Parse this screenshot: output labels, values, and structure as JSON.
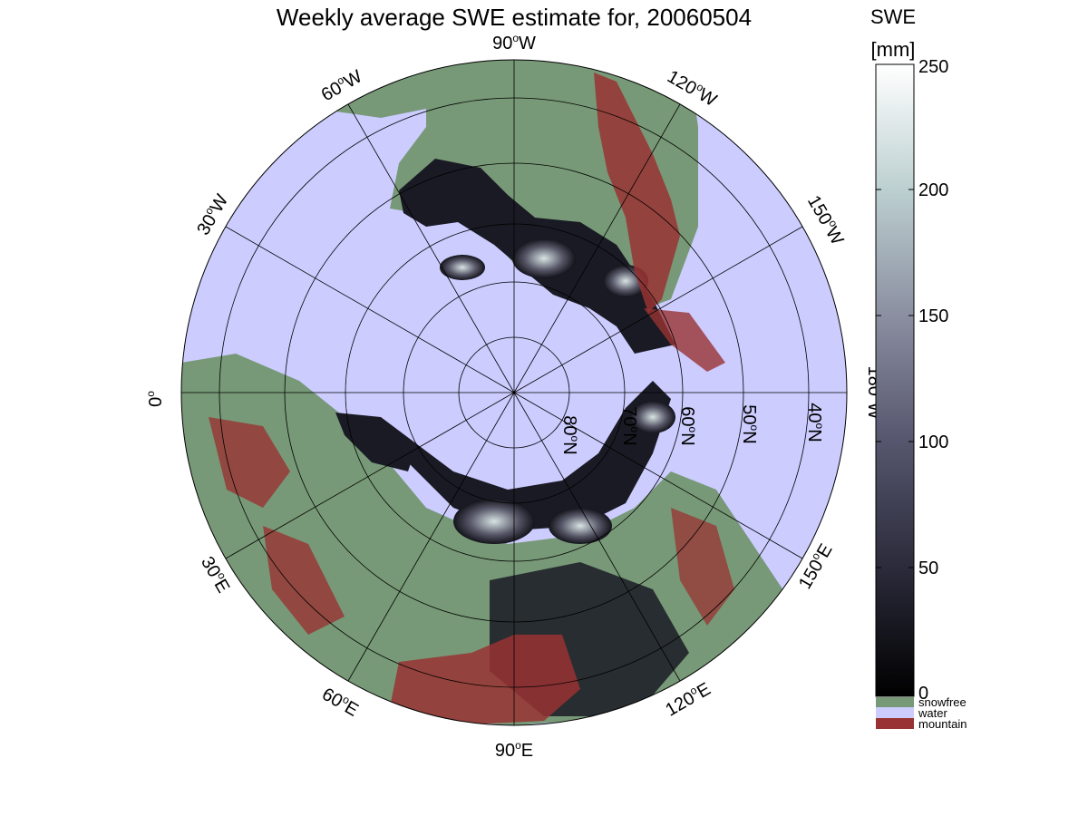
{
  "map": {
    "title": "Weekly average SWE estimate for, 20060504",
    "projection": "north-polar-stereographic",
    "meridian_labels": [
      {
        "lon_label": "90",
        "hemi": "W"
      },
      {
        "lon_label": "120",
        "hemi": "W"
      },
      {
        "lon_label": "150",
        "hemi": "W"
      },
      {
        "lon_label": "180",
        "hemi": "W"
      },
      {
        "lon_label": "150",
        "hemi": "E"
      },
      {
        "lon_label": "120",
        "hemi": "E"
      },
      {
        "lon_label": "90",
        "hemi": "E"
      },
      {
        "lon_label": "60",
        "hemi": "E"
      },
      {
        "lon_label": "30",
        "hemi": "E"
      },
      {
        "lon_label": "0",
        "hemi": ""
      },
      {
        "lon_label": "30",
        "hemi": "W"
      },
      {
        "lon_label": "60",
        "hemi": "W"
      }
    ],
    "parallel_labels": [
      {
        "lat": "80",
        "hemi": "N"
      },
      {
        "lat": "70",
        "hemi": "N"
      },
      {
        "lat": "60",
        "hemi": "N"
      },
      {
        "lat": "50",
        "hemi": "N"
      },
      {
        "lat": "40",
        "hemi": "N"
      }
    ],
    "colors": {
      "water": "#ccccff",
      "snowfree": "#779977",
      "mountain": "#993333",
      "coastline": "#000000",
      "grid": "#000000"
    }
  },
  "colorbar": {
    "title_line1": "SWE",
    "title_line2": "[mm]",
    "ticks": [
      "0",
      "50",
      "100",
      "150",
      "200",
      "250"
    ],
    "range": [
      0,
      250
    ],
    "gradient": [
      "#000000",
      "#2a2a3a",
      "#55556d",
      "#8a8ea0",
      "#bccfd0",
      "#ffffff"
    ],
    "categories": [
      {
        "label": "snowfree",
        "color": "#779977"
      },
      {
        "label": "water",
        "color": "#ccccff"
      },
      {
        "label": "mountain",
        "color": "#993333"
      }
    ]
  }
}
